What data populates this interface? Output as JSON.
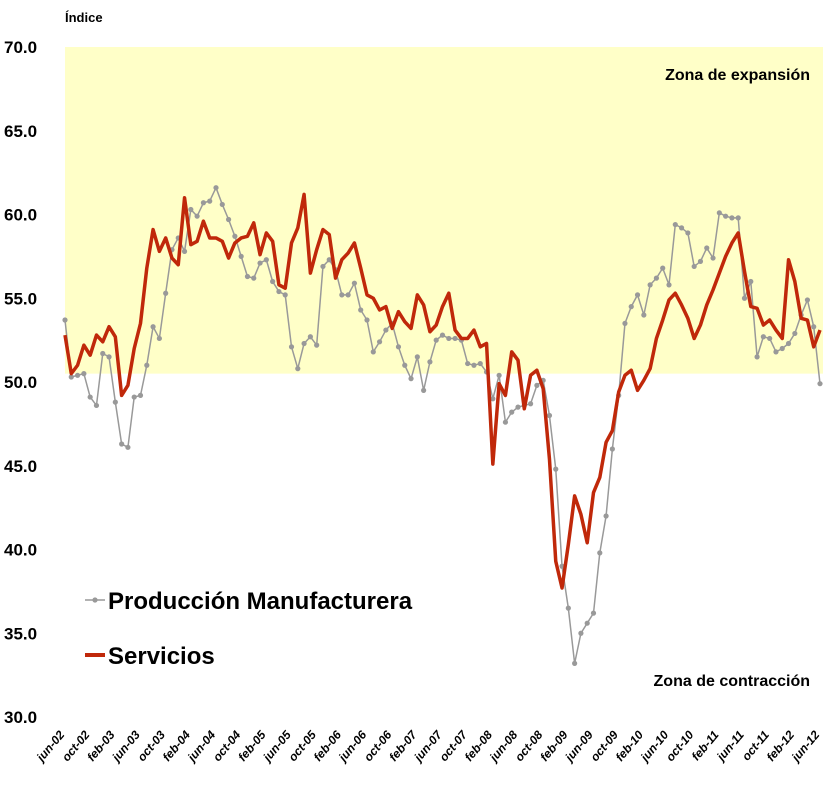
{
  "chart_data": {
    "type": "line",
    "y_label": "Índice",
    "annotations": [
      "Zona de expansión",
      "Zona de contracción"
    ],
    "band": {
      "from": 50.5,
      "to": 70,
      "color": "#ffffc8"
    },
    "categories": [
      "jun-02",
      null,
      null,
      null,
      "oct-02",
      null,
      null,
      null,
      "feb-03",
      null,
      null,
      null,
      "jun-03",
      null,
      null,
      null,
      "oct-03",
      null,
      null,
      null,
      "feb-04",
      null,
      null,
      null,
      "jun-04",
      null,
      null,
      null,
      "oct-04",
      null,
      null,
      null,
      "feb-05",
      null,
      null,
      null,
      "jun-05",
      null,
      null,
      null,
      "oct-05",
      null,
      null,
      null,
      "feb-06",
      null,
      null,
      null,
      "jun-06",
      null,
      null,
      null,
      "oct-06",
      null,
      null,
      null,
      "feb-07",
      null,
      null,
      null,
      "jun-07",
      null,
      null,
      null,
      "oct-07",
      null,
      null,
      null,
      "feb-08",
      null,
      null,
      null,
      "jun-08",
      null,
      null,
      null,
      "oct-08",
      null,
      null,
      null,
      "feb-09",
      null,
      null,
      null,
      "jun-09",
      null,
      null,
      null,
      "oct-09",
      null,
      null,
      null,
      "feb-10",
      null,
      null,
      null,
      "jun-10",
      null,
      null,
      null,
      "oct-10",
      null,
      null,
      null,
      "feb-11",
      null,
      null,
      null,
      "jun-11",
      null,
      null,
      null,
      "oct-11",
      null,
      null,
      null,
      "feb-12",
      null,
      null,
      null,
      "jun-12"
    ],
    "series": [
      {
        "name": "Producción Manufacturera",
        "color": "#999999",
        "markers": true,
        "values": [
          53.7,
          50.3,
          50.4,
          50.5,
          49.1,
          48.6,
          51.7,
          51.5,
          48.8,
          46.3,
          46.1,
          49.1,
          49.2,
          51.0,
          53.3,
          52.6,
          55.3,
          57.9,
          58.6,
          57.8,
          60.3,
          59.9,
          60.7,
          60.8,
          61.6,
          60.6,
          59.7,
          58.7,
          57.5,
          56.3,
          56.2,
          57.1,
          57.3,
          56.0,
          55.4,
          55.2,
          52.1,
          50.8,
          52.3,
          52.7,
          52.2,
          56.9,
          57.3,
          56.7,
          55.2,
          55.2,
          55.9,
          54.3,
          53.7,
          51.8,
          52.4,
          53.1,
          53.5,
          52.1,
          51.0,
          50.2,
          51.5,
          49.5,
          51.2,
          52.5,
          52.8,
          52.6,
          52.6,
          52.5,
          51.1,
          51.0,
          51.1,
          50.6,
          49.0,
          50.4,
          47.6,
          48.2,
          48.5,
          48.6,
          48.7,
          49.8,
          50.1,
          48.0,
          44.8,
          39.0,
          36.5,
          33.2,
          35.0,
          35.6,
          36.2,
          39.8,
          42.0,
          46.0,
          49.2,
          53.5,
          54.5,
          55.2,
          54.0,
          55.8,
          56.2,
          56.8,
          55.8,
          59.4,
          59.2,
          58.9,
          56.9,
          57.2,
          58.0,
          57.4,
          60.1,
          59.9,
          59.8,
          59.8,
          55.0,
          56.0,
          51.5,
          52.7,
          52.6,
          51.8,
          52.0,
          52.3,
          52.9,
          54.0,
          54.9,
          53.3,
          49.9
        ]
      },
      {
        "name": "Servicios",
        "color": "#c0280a",
        "markers": false,
        "values": [
          52.8,
          50.5,
          51.0,
          52.2,
          51.6,
          52.8,
          52.4,
          53.3,
          52.7,
          49.2,
          49.8,
          52.0,
          53.5,
          56.8,
          59.1,
          57.8,
          58.6,
          57.4,
          57.0,
          61.0,
          58.2,
          58.4,
          59.6,
          58.6,
          58.6,
          58.4,
          57.4,
          58.3,
          58.6,
          58.7,
          59.5,
          57.6,
          58.9,
          58.4,
          55.8,
          55.6,
          58.3,
          59.2,
          61.2,
          56.5,
          57.9,
          59.1,
          58.8,
          56.2,
          57.3,
          57.7,
          58.3,
          56.8,
          55.2,
          55.0,
          54.3,
          54.5,
          53.2,
          54.2,
          53.6,
          53.2,
          55.2,
          54.6,
          53.0,
          53.4,
          54.5,
          55.3,
          53.1,
          52.6,
          52.6,
          53.1,
          52.1,
          52.3,
          45.1,
          49.9,
          49.2,
          51.8,
          51.3,
          48.4,
          50.4,
          50.7,
          49.6,
          45.4,
          39.3,
          37.7,
          40.3,
          43.2,
          42.1,
          40.4,
          43.4,
          44.3,
          46.4,
          47.1,
          49.4,
          50.4,
          50.7,
          49.5,
          50.1,
          50.8,
          52.6,
          53.7,
          54.9,
          55.3,
          54.6,
          53.8,
          52.6,
          53.4,
          54.6,
          55.5,
          56.5,
          57.5,
          58.3,
          58.9,
          56.6,
          54.5,
          54.4,
          53.4,
          53.7,
          53.1,
          52.6,
          57.3,
          56.0,
          53.8,
          53.7,
          52.1,
          53.1
        ]
      }
    ],
    "ylim": [
      30,
      70
    ],
    "yticks": [
      {
        "value": 30,
        "label": "30.0"
      },
      {
        "value": 35,
        "label": "35.0"
      },
      {
        "value": 40,
        "label": "40.0"
      },
      {
        "value": 45,
        "label": "45.0"
      },
      {
        "value": 50,
        "label": "50.0"
      },
      {
        "value": 55,
        "label": "55.0"
      },
      {
        "value": 60,
        "label": "60.0"
      },
      {
        "value": 65,
        "label": "65.0"
      },
      {
        "value": 70,
        "label": "70.0"
      }
    ],
    "grid": false,
    "legend": "lower left"
  }
}
